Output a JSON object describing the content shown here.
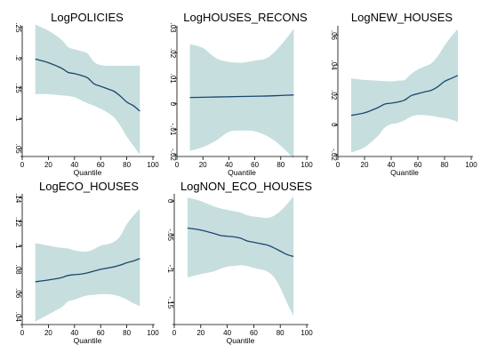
{
  "colors": {
    "line": "#1a476f",
    "band": "#c6dede",
    "axis": "#000000",
    "background": "#ffffff"
  },
  "chart_data": [
    {
      "type": "line",
      "title": "LogPOLICIES",
      "xlabel": "Quantile",
      "ylabel": "",
      "xlim": [
        0,
        100
      ],
      "ylim": [
        0.04,
        0.25
      ],
      "xticks": [
        0,
        20,
        40,
        60,
        80,
        100
      ],
      "xtick_labels": [
        "0",
        "20",
        "40",
        "60",
        "80",
        "100"
      ],
      "yticks": [
        0.05,
        0.1,
        0.15,
        0.2,
        0.25
      ],
      "ytick_labels": [
        ".05",
        ".1",
        ".15",
        ".2",
        ".25"
      ],
      "x": [
        10,
        20,
        30,
        35,
        40,
        45,
        50,
        55,
        60,
        65,
        70,
        75,
        80,
        85,
        90
      ],
      "coefficient": [
        0.198,
        0.192,
        0.183,
        0.176,
        0.174,
        0.171,
        0.167,
        0.157,
        0.153,
        0.149,
        0.145,
        0.137,
        0.127,
        0.121,
        0.112
      ],
      "ci_upper": [
        0.255,
        0.245,
        0.23,
        0.218,
        0.214,
        0.211,
        0.207,
        0.193,
        0.188,
        0.187,
        0.187,
        0.187,
        0.187,
        0.187,
        0.187
      ],
      "ci_lower": [
        0.14,
        0.14,
        0.138,
        0.137,
        0.135,
        0.13,
        0.125,
        0.121,
        0.116,
        0.11,
        0.102,
        0.088,
        0.07,
        0.055,
        0.04
      ]
    },
    {
      "type": "line",
      "title": "LogHOUSES_RECONS",
      "xlabel": "Quantile",
      "ylabel": "",
      "xlim": [
        0,
        100
      ],
      "ylim": [
        -0.02,
        0.03
      ],
      "xticks": [
        0,
        20,
        40,
        60,
        80,
        100
      ],
      "xtick_labels": [
        "0",
        "20",
        "40",
        "60",
        "80",
        "100"
      ],
      "yticks": [
        -0.02,
        -0.01,
        0,
        0.01,
        0.02,
        0.03
      ],
      "ytick_labels": [
        "-.02",
        "-.01",
        "0",
        ".01",
        ".02",
        ".03"
      ],
      "x": [
        10,
        20,
        30,
        40,
        50,
        60,
        70,
        80,
        90
      ],
      "coefficient": [
        0.0025,
        0.0026,
        0.0027,
        0.0028,
        0.0029,
        0.003,
        0.0031,
        0.0033,
        0.0035
      ],
      "ci_upper": [
        0.0235,
        0.022,
        0.018,
        0.0165,
        0.0162,
        0.017,
        0.0182,
        0.023,
        0.0295
      ],
      "ci_lower": [
        -0.0185,
        -0.017,
        -0.0145,
        -0.011,
        -0.0105,
        -0.0108,
        -0.0128,
        -0.0165,
        -0.0215
      ]
    },
    {
      "type": "line",
      "title": "LogNEW_HOUSES",
      "xlabel": "Quantile",
      "ylabel": "",
      "xlim": [
        0,
        100
      ],
      "ylim": [
        -0.02,
        0.065
      ],
      "xticks": [
        0,
        20,
        40,
        60,
        80,
        100
      ],
      "xtick_labels": [
        "0",
        "20",
        "40",
        "60",
        "80",
        "100"
      ],
      "yticks": [
        -0.02,
        0,
        0.02,
        0.04,
        0.06
      ],
      "ytick_labels": [
        "-.02",
        "0",
        ".02",
        ".04",
        ".06"
      ],
      "x": [
        10,
        20,
        30,
        35,
        40,
        45,
        50,
        55,
        60,
        65,
        70,
        75,
        80,
        85,
        90
      ],
      "coefficient": [
        0.0063,
        0.008,
        0.0115,
        0.0138,
        0.0145,
        0.0152,
        0.0165,
        0.0195,
        0.0208,
        0.022,
        0.023,
        0.0255,
        0.029,
        0.031,
        0.033
      ],
      "ci_upper": [
        0.031,
        0.03,
        0.0295,
        0.0292,
        0.029,
        0.0295,
        0.03,
        0.034,
        0.037,
        0.039,
        0.041,
        0.046,
        0.053,
        0.059,
        0.064
      ],
      "ci_lower": [
        -0.0185,
        -0.015,
        -0.0075,
        -0.002,
        0.0005,
        0.0012,
        0.003,
        0.0055,
        0.0065,
        0.0065,
        0.006,
        0.0052,
        0.0045,
        0.0035,
        0.002
      ]
    },
    {
      "type": "line",
      "title": "LogECO_HOUSES",
      "xlabel": "Quantile",
      "ylabel": "",
      "xlim": [
        0,
        100
      ],
      "ylim": [
        0.035,
        0.142
      ],
      "xticks": [
        0,
        20,
        40,
        60,
        80,
        100
      ],
      "xtick_labels": [
        "0",
        "20",
        "40",
        "60",
        "80",
        "100"
      ],
      "yticks": [
        0.04,
        0.06,
        0.08,
        0.1,
        0.12,
        0.14
      ],
      "ytick_labels": [
        ".04",
        ".06",
        ".08",
        ".1",
        ".12",
        ".14"
      ],
      "x": [
        10,
        20,
        30,
        35,
        40,
        45,
        50,
        55,
        60,
        65,
        70,
        75,
        80,
        85,
        90
      ],
      "coefficient": [
        0.0695,
        0.071,
        0.073,
        0.0748,
        0.0755,
        0.076,
        0.077,
        0.0785,
        0.08,
        0.081,
        0.082,
        0.0835,
        0.0855,
        0.087,
        0.089
      ],
      "ci_upper": [
        0.102,
        0.1,
        0.098,
        0.0975,
        0.096,
        0.095,
        0.095,
        0.097,
        0.1,
        0.101,
        0.103,
        0.108,
        0.118,
        0.125,
        0.131
      ],
      "ci_lower": [
        0.036,
        0.042,
        0.048,
        0.053,
        0.0545,
        0.0565,
        0.058,
        0.0585,
        0.059,
        0.059,
        0.0585,
        0.057,
        0.0545,
        0.0515,
        0.049
      ]
    },
    {
      "type": "line",
      "title": "LogNON_ECO_HOUSES",
      "xlabel": "Quantile",
      "ylabel": "",
      "xlim": [
        0,
        100
      ],
      "ylim": [
        -0.18,
        0.008
      ],
      "xticks": [
        0,
        20,
        40,
        60,
        80,
        100
      ],
      "xtick_labels": [
        "0",
        "20",
        "40",
        "60",
        "80",
        "100"
      ],
      "yticks": [
        -0.15,
        -0.1,
        -0.05,
        0
      ],
      "ytick_labels": [
        "-.15",
        "-.1",
        "-.05",
        "0"
      ],
      "x": [
        10,
        20,
        30,
        35,
        40,
        45,
        50,
        55,
        60,
        65,
        70,
        75,
        80,
        85,
        90
      ],
      "coefficient": [
        -0.04,
        -0.043,
        -0.048,
        -0.051,
        -0.052,
        -0.053,
        -0.055,
        -0.059,
        -0.061,
        -0.063,
        -0.065,
        -0.069,
        -0.074,
        -0.079,
        -0.082
      ],
      "ci_upper": [
        0.005,
        0.0,
        -0.008,
        -0.011,
        -0.013,
        -0.015,
        -0.017,
        -0.021,
        -0.023,
        -0.024,
        -0.025,
        -0.022,
        -0.015,
        -0.005,
        0.007
      ],
      "ci_lower": [
        -0.113,
        -0.108,
        -0.104,
        -0.1,
        -0.097,
        -0.096,
        -0.095,
        -0.096,
        -0.099,
        -0.101,
        -0.104,
        -0.112,
        -0.128,
        -0.15,
        -0.17
      ]
    }
  ]
}
